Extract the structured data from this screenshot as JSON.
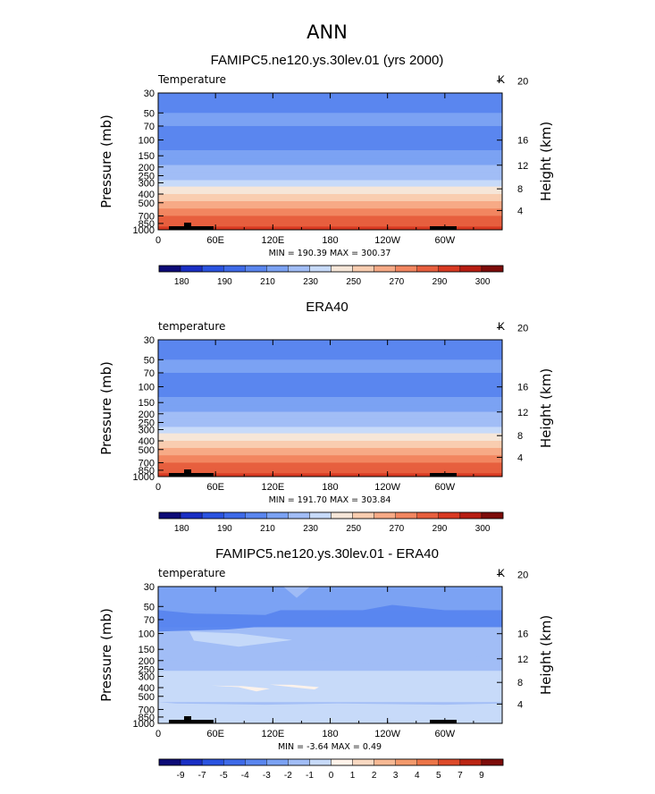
{
  "page_title": "ANN",
  "colors": {
    "t_levels": [
      "#0d0b77",
      "#1a2fc4",
      "#2a53e0",
      "#3e6ae8",
      "#5a86ef",
      "#7ba2f3",
      "#a1bdf6",
      "#c7daf9",
      "#f6e6d8",
      "#f9cdb0",
      "#f7aa86",
      "#f28660",
      "#e75f3e",
      "#d83a22",
      "#b71d12",
      "#7d0c0a"
    ],
    "d_levels": [
      "#0d0b77",
      "#1a2fc4",
      "#2a53e0",
      "#3e6ae8",
      "#5a86ef",
      "#7ba2f3",
      "#a1bdf6",
      "#c7daf9",
      "#fff3ea",
      "#f9d9c2",
      "#f7b994",
      "#f39a6c",
      "#ec7548",
      "#dd4a2a",
      "#bb2513",
      "#7d0c0a"
    ],
    "land": "#000000"
  },
  "chart_data": [
    {
      "type": "heatmap",
      "title": "FAMIPC5.ne120.ys.30lev.01 (yrs 2000)",
      "left_label": "Temperature",
      "unit_label": "K",
      "xlabel": "",
      "ylabel": "Pressure (mb)",
      "ylabel_right": "Height (km)",
      "x_ticks": [
        "0",
        "60E",
        "120E",
        "180",
        "120W",
        "60W"
      ],
      "y_ticks": [
        "30",
        "50",
        "70",
        "100",
        "150",
        "200",
        "250",
        "300",
        "400",
        "500",
        "700",
        "850",
        "1000"
      ],
      "y_right_ticks": [
        "20",
        "16",
        "12",
        "8",
        "4"
      ],
      "stats": "MIN = 190.39   MAX = 300.37",
      "colorbar_labels": [
        "180",
        "190",
        "210",
        "230",
        "250",
        "270",
        "290",
        "300"
      ],
      "layers": [
        {
          "p_top": 30,
          "p_bot": 50,
          "value": 206
        },
        {
          "p_top": 50,
          "p_bot": 70,
          "value": 210
        },
        {
          "p_top": 70,
          "p_bot": 130,
          "value": 202
        },
        {
          "p_top": 130,
          "p_bot": 160,
          "value": 210
        },
        {
          "p_top": 160,
          "p_bot": 190,
          "value": 217
        },
        {
          "p_top": 190,
          "p_bot": 230,
          "value": 222
        },
        {
          "p_top": 230,
          "p_bot": 280,
          "value": 228
        },
        {
          "p_top": 280,
          "p_bot": 330,
          "value": 237
        },
        {
          "p_top": 330,
          "p_bot": 400,
          "value": 246
        },
        {
          "p_top": 400,
          "p_bot": 480,
          "value": 254
        },
        {
          "p_top": 480,
          "p_bot": 580,
          "value": 262
        },
        {
          "p_top": 580,
          "p_bot": 700,
          "value": 271
        },
        {
          "p_top": 700,
          "p_bot": 820,
          "value": 280
        },
        {
          "p_top": 820,
          "p_bot": 920,
          "value": 287
        },
        {
          "p_top": 920,
          "p_bot": 1000,
          "value": 293
        }
      ]
    },
    {
      "type": "heatmap",
      "title": "ERA40",
      "left_label": "temperature",
      "unit_label": "K",
      "xlabel": "",
      "ylabel": "Pressure (mb)",
      "ylabel_right": "Height (km)",
      "x_ticks": [
        "0",
        "60E",
        "120E",
        "180",
        "120W",
        "60W"
      ],
      "y_ticks": [
        "30",
        "50",
        "70",
        "100",
        "150",
        "200",
        "250",
        "300",
        "400",
        "500",
        "700",
        "850",
        "1000"
      ],
      "y_right_ticks": [
        "20",
        "16",
        "12",
        "8",
        "4"
      ],
      "stats": "MIN = 191.70   MAX = 303.84",
      "colorbar_labels": [
        "180",
        "190",
        "210",
        "230",
        "250",
        "270",
        "290",
        "300"
      ],
      "layers": [
        {
          "p_top": 30,
          "p_bot": 50,
          "value": 206
        },
        {
          "p_top": 50,
          "p_bot": 70,
          "value": 210
        },
        {
          "p_top": 70,
          "p_bot": 130,
          "value": 202
        },
        {
          "p_top": 130,
          "p_bot": 160,
          "value": 210
        },
        {
          "p_top": 160,
          "p_bot": 190,
          "value": 217
        },
        {
          "p_top": 190,
          "p_bot": 230,
          "value": 222
        },
        {
          "p_top": 230,
          "p_bot": 280,
          "value": 228
        },
        {
          "p_top": 280,
          "p_bot": 330,
          "value": 237
        },
        {
          "p_top": 330,
          "p_bot": 400,
          "value": 246
        },
        {
          "p_top": 400,
          "p_bot": 480,
          "value": 254
        },
        {
          "p_top": 480,
          "p_bot": 580,
          "value": 262
        },
        {
          "p_top": 580,
          "p_bot": 700,
          "value": 271
        },
        {
          "p_top": 700,
          "p_bot": 820,
          "value": 280
        },
        {
          "p_top": 820,
          "p_bot": 920,
          "value": 287
        },
        {
          "p_top": 920,
          "p_bot": 1000,
          "value": 295
        }
      ]
    },
    {
      "type": "heatmap",
      "title": "FAMIPC5.ne120.ys.30lev.01 - ERA40",
      "left_label": "temperature",
      "unit_label": "K",
      "xlabel": "",
      "ylabel": "Pressure (mb)",
      "ylabel_right": "Height (km)",
      "x_ticks": [
        "0",
        "60E",
        "120E",
        "180",
        "120W",
        "60W"
      ],
      "y_ticks": [
        "30",
        "50",
        "70",
        "100",
        "150",
        "200",
        "250",
        "300",
        "400",
        "500",
        "700",
        "850",
        "1000"
      ],
      "y_right_ticks": [
        "20",
        "16",
        "12",
        "8",
        "4"
      ],
      "stats": "MIN =  -3.64   MAX =   0.49",
      "colorbar_labels": [
        "-9",
        "-7",
        "-5",
        "-4",
        "-3",
        "-2",
        "-1",
        "0",
        "1",
        "2",
        "3",
        "4",
        "5",
        "7",
        "9"
      ],
      "layers": [
        {
          "p_top": 30,
          "p_bot": 55,
          "value": -2.5
        },
        {
          "p_top": 55,
          "p_bot": 85,
          "value": -3.5
        },
        {
          "p_top": 85,
          "p_bot": 200,
          "value": -1.5
        },
        {
          "p_top": 200,
          "p_bot": 260,
          "value": -1.5
        },
        {
          "p_top": 260,
          "p_bot": 1000,
          "value": -0.5
        }
      ]
    }
  ]
}
